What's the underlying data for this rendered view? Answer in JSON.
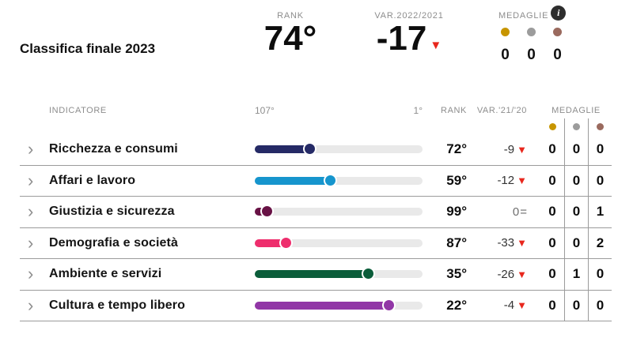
{
  "colors": {
    "gold": "#c79500",
    "silver": "#9c9c9c",
    "bronze": "#9a6a5e",
    "red": "#e8271d",
    "track": "#e9e9e9",
    "separator": "#9b9b9b",
    "label_gray": "#8d8d8d"
  },
  "icons": {
    "triangle_down": "▼",
    "equal": "=",
    "chevron_right": "›",
    "info": "i"
  },
  "header": {
    "title": "Classifica finale 2023",
    "rank": {
      "label": "RANK",
      "value": "74°"
    },
    "variation": {
      "label": "VAR.2022/2021",
      "value": "-17",
      "direction": "down"
    },
    "medals": {
      "label": "MEDAGLIE",
      "counts": [
        {
          "metal": "gold",
          "value": "0"
        },
        {
          "metal": "silver",
          "value": "0"
        },
        {
          "metal": "bronze",
          "value": "0"
        }
      ]
    }
  },
  "table": {
    "columns": {
      "indicator": "INDICATORE",
      "scale_left": "107°",
      "scale_right": "1°",
      "rank": "RANK",
      "variation": "VAR.'21/'20",
      "medals": "MEDAGLIE"
    },
    "rows": [
      {
        "label": "Ricchezza e consumi",
        "color": "#252a66",
        "rank": "72°",
        "variation": {
          "value": "-9",
          "direction": "down"
        },
        "medals": [
          "0",
          "0",
          "0"
        ]
      },
      {
        "label": "Affari e lavoro",
        "color": "#1695cd",
        "rank": "59°",
        "variation": {
          "value": "-12",
          "direction": "down"
        },
        "medals": [
          "0",
          "0",
          "0"
        ]
      },
      {
        "label": "Giustizia e sicurezza",
        "color": "#681245",
        "rank": "99°",
        "variation": {
          "value": "0",
          "direction": "equal"
        },
        "medals": [
          "0",
          "0",
          "1"
        ]
      },
      {
        "label": "Demografia e società",
        "color": "#ee2e6d",
        "rank": "87°",
        "variation": {
          "value": "-33",
          "direction": "down"
        },
        "medals": [
          "0",
          "0",
          "2"
        ]
      },
      {
        "label": "Ambiente e servizi",
        "color": "#0b5d3a",
        "rank": "35°",
        "variation": {
          "value": "-26",
          "direction": "down"
        },
        "medals": [
          "0",
          "1",
          "0"
        ]
      },
      {
        "label": "Cultura e tempo libero",
        "color": "#9136a6",
        "rank": "22°",
        "variation": {
          "value": "-4",
          "direction": "down"
        },
        "medals": [
          "0",
          "0",
          "0"
        ]
      }
    ]
  },
  "chart_data": {
    "type": "bar",
    "title": "Classifica finale 2023",
    "rank_scale": {
      "worst": 107,
      "best": 1
    },
    "overall": {
      "rank": 74,
      "variation_2022_2021": -17,
      "medals_gold": 0,
      "medals_silver": 0,
      "medals_bronze": 0
    },
    "categories": [
      "Ricchezza e consumi",
      "Affari e lavoro",
      "Giustizia e sicurezza",
      "Demografia e società",
      "Ambiente e servizi",
      "Cultura e tempo libero"
    ],
    "series": [
      {
        "name": "RANK",
        "values": [
          72,
          59,
          99,
          87,
          35,
          22
        ]
      },
      {
        "name": "VAR.'21/'20",
        "values": [
          -9,
          -12,
          0,
          -33,
          -26,
          -4
        ]
      },
      {
        "name": "Medaglie oro",
        "values": [
          0,
          0,
          0,
          0,
          0,
          0
        ]
      },
      {
        "name": "Medaglie argento",
        "values": [
          0,
          0,
          0,
          0,
          1,
          0
        ]
      },
      {
        "name": "Medaglie bronzo",
        "values": [
          0,
          0,
          1,
          2,
          0,
          0
        ]
      }
    ],
    "bar_colors": [
      "#252a66",
      "#1695cd",
      "#681245",
      "#ee2e6d",
      "#0b5d3a",
      "#9136a6"
    ],
    "legend_position": "none",
    "grid": false
  }
}
